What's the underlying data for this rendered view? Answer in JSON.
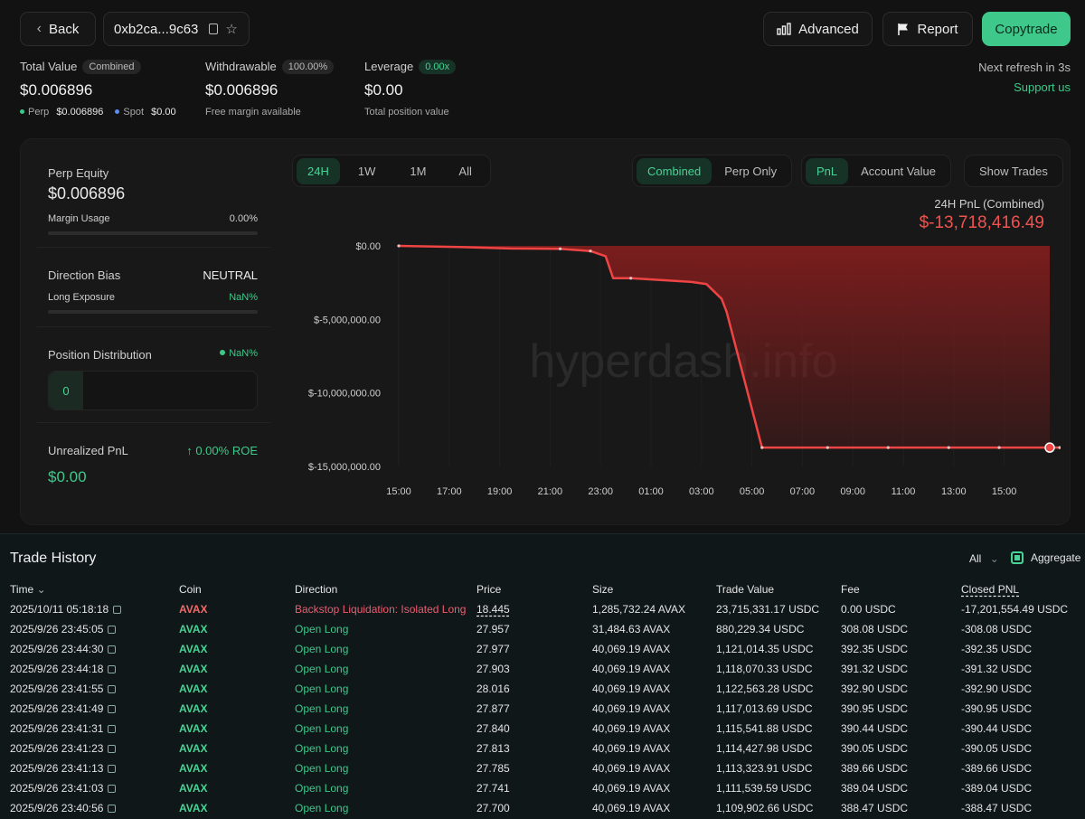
{
  "header": {
    "back_label": "Back",
    "address": "0xb2ca...9c63",
    "advanced_label": "Advanced",
    "report_label": "Report",
    "copytrade_label": "Copytrade",
    "refresh_text": "Next refresh in 3s",
    "support_label": "Support us"
  },
  "stats": {
    "total_value": {
      "label": "Total Value",
      "badge": "Combined",
      "value": "$0.006896",
      "perp_label": "Perp",
      "perp_value": "$0.006896",
      "spot_label": "Spot",
      "spot_value": "$0.00"
    },
    "withdrawable": {
      "label": "Withdrawable",
      "badge": "100.00%",
      "value": "$0.006896",
      "sub": "Free margin available"
    },
    "leverage": {
      "label": "Leverage",
      "badge": "0.00x",
      "value": "$0.00",
      "sub": "Total position value"
    }
  },
  "side": {
    "perp_equity_label": "Perp Equity",
    "perp_equity_value": "$0.006896",
    "margin_usage_label": "Margin Usage",
    "margin_usage_value": "0.00%",
    "direction_bias_label": "Direction Bias",
    "direction_bias_value": "NEUTRAL",
    "long_exposure_label": "Long Exposure",
    "long_exposure_value": "NaN%",
    "position_distribution_label": "Position Distribution",
    "position_distribution_value": "NaN%",
    "position_count": "0",
    "unrealized_pnl_label": "Unrealized PnL",
    "roe_value": "0.00% ROE",
    "unrealized_pnl_value": "$0.00"
  },
  "controls": {
    "ranges": [
      "24H",
      "1W",
      "1M",
      "All"
    ],
    "range_selected": "24H",
    "scope": [
      "Combined",
      "Perp Only"
    ],
    "scope_selected": "Combined",
    "metric": [
      "PnL",
      "Account Value"
    ],
    "metric_selected": "PnL",
    "show_trades_label": "Show Trades"
  },
  "chart_data": {
    "type": "area",
    "title": "24H PnL (Combined)",
    "headline_value": "$-13,718,416.49",
    "watermark": "hyperdash.info",
    "x_ticks": [
      "15:00",
      "17:00",
      "19:00",
      "21:00",
      "23:00",
      "01:00",
      "03:00",
      "05:00",
      "07:00",
      "09:00",
      "11:00",
      "13:00",
      "15:00"
    ],
    "y_ticks": [
      "$0.00",
      "$-5,000,000.00",
      "$-10,000,000.00",
      "$-15,000,000.00"
    ],
    "ylim": [
      -15000000,
      0
    ],
    "x_hours": [
      0,
      2.4,
      4.4,
      6.4,
      7.6,
      8.2,
      8.5,
      9.2,
      11.6,
      12.2,
      12.8,
      13.0,
      14.4,
      17,
      19.4,
      21.8,
      23.8,
      26.2
    ],
    "values": [
      0,
      -80000,
      -180000,
      -200000,
      -350000,
      -700000,
      -2200000,
      -2200000,
      -2450000,
      -2600000,
      -3600000,
      -4500000,
      -13718416.49,
      -13718416.49,
      -13718416.49,
      -13718416.49,
      -13718416.49,
      -13718416.49
    ],
    "line_color": "#ef4444",
    "fill_color": "#7a1d1d"
  },
  "history": {
    "title": "Trade History",
    "filter_label": "All",
    "aggregate_label": "Aggregate",
    "columns": [
      "Time",
      "Coin",
      "Direction",
      "Price",
      "Size",
      "Trade Value",
      "Fee",
      "Closed PNL"
    ],
    "rows": [
      [
        "2025/10/11 05:18:18",
        "AVAX",
        "Backstop Liquidation: Isolated Long",
        "18.445",
        "1,285,732.24 AVAX",
        "23,715,331.17 USDC",
        "0.00 USDC",
        "-17,201,554.49 USDC"
      ],
      [
        "2025/9/26 23:45:05",
        "AVAX",
        "Open Long",
        "27.957",
        "31,484.63 AVAX",
        "880,229.34 USDC",
        "308.08 USDC",
        "-308.08 USDC"
      ],
      [
        "2025/9/26 23:44:30",
        "AVAX",
        "Open Long",
        "27.977",
        "40,069.19 AVAX",
        "1,121,014.35 USDC",
        "392.35 USDC",
        "-392.35 USDC"
      ],
      [
        "2025/9/26 23:44:18",
        "AVAX",
        "Open Long",
        "27.903",
        "40,069.19 AVAX",
        "1,118,070.33 USDC",
        "391.32 USDC",
        "-391.32 USDC"
      ],
      [
        "2025/9/26 23:41:55",
        "AVAX",
        "Open Long",
        "28.016",
        "40,069.19 AVAX",
        "1,122,563.28 USDC",
        "392.90 USDC",
        "-392.90 USDC"
      ],
      [
        "2025/9/26 23:41:49",
        "AVAX",
        "Open Long",
        "27.877",
        "40,069.19 AVAX",
        "1,117,013.69 USDC",
        "390.95 USDC",
        "-390.95 USDC"
      ],
      [
        "2025/9/26 23:41:31",
        "AVAX",
        "Open Long",
        "27.840",
        "40,069.19 AVAX",
        "1,115,541.88 USDC",
        "390.44 USDC",
        "-390.44 USDC"
      ],
      [
        "2025/9/26 23:41:23",
        "AVAX",
        "Open Long",
        "27.813",
        "40,069.19 AVAX",
        "1,114,427.98 USDC",
        "390.05 USDC",
        "-390.05 USDC"
      ],
      [
        "2025/9/26 23:41:13",
        "AVAX",
        "Open Long",
        "27.785",
        "40,069.19 AVAX",
        "1,113,323.91 USDC",
        "389.66 USDC",
        "-389.66 USDC"
      ],
      [
        "2025/9/26 23:41:03",
        "AVAX",
        "Open Long",
        "27.741",
        "40,069.19 AVAX",
        "1,111,539.59 USDC",
        "389.04 USDC",
        "-389.04 USDC"
      ],
      [
        "2025/9/26 23:40:56",
        "AVAX",
        "Open Long",
        "27.700",
        "40,069.19 AVAX",
        "1,109,902.66 USDC",
        "388.47 USDC",
        "-388.47 USDC"
      ]
    ]
  },
  "colors": {
    "accent": "#3ec98b",
    "loss": "#ef5350",
    "copytrade_bg": "#3ec98b"
  }
}
